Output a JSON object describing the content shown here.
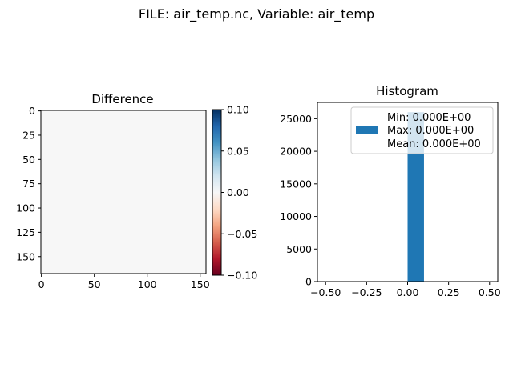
{
  "figure": {
    "suptitle": "FILE: air_temp.nc, Variable: air_temp"
  },
  "chart_data": [
    {
      "type": "heatmap",
      "title": "Difference",
      "x_ticks": [
        0,
        50,
        100,
        150
      ],
      "y_ticks": [
        0,
        25,
        50,
        75,
        100,
        125,
        150
      ],
      "x_range": [
        -0.5,
        155.5
      ],
      "y_range": [
        -0.5,
        167.5
      ],
      "fill_color": "#f7f7f7",
      "colorbar": {
        "colormap": "RdBu",
        "range": [
          -0.1,
          0.1
        ],
        "ticks": [
          0.1,
          0.05,
          0.0,
          -0.05,
          -0.1
        ],
        "tick_labels": [
          "0.10",
          "0.05",
          "0.00",
          "−0.05",
          "−0.10"
        ],
        "colors": [
          "#67001f",
          "#b2182b",
          "#d6604d",
          "#f4a582",
          "#fddbc7",
          "#f7f7f7",
          "#d1e5f0",
          "#92c5de",
          "#4393c3",
          "#2166ac",
          "#053061"
        ]
      }
    },
    {
      "type": "bar",
      "title": "Histogram",
      "bins": [
        {
          "x0": 0.0,
          "x1": 0.1,
          "count": 26000
        }
      ],
      "xlim": [
        -0.55,
        0.55
      ],
      "ylim": [
        0,
        27500
      ],
      "x_ticks": [
        -0.5,
        -0.25,
        0.0,
        0.25,
        0.5
      ],
      "x_tick_labels": [
        "−0.50",
        "−0.25",
        "0.00",
        "0.25",
        "0.50"
      ],
      "y_ticks": [
        0,
        5000,
        10000,
        15000,
        20000,
        25000
      ],
      "bar_color": "#1f77b4",
      "legend": {
        "position": "top-right",
        "lines": [
          "Min: 0.000E+00",
          "Max: 0.000E+00",
          "Mean: 0.000E+00"
        ]
      }
    }
  ]
}
